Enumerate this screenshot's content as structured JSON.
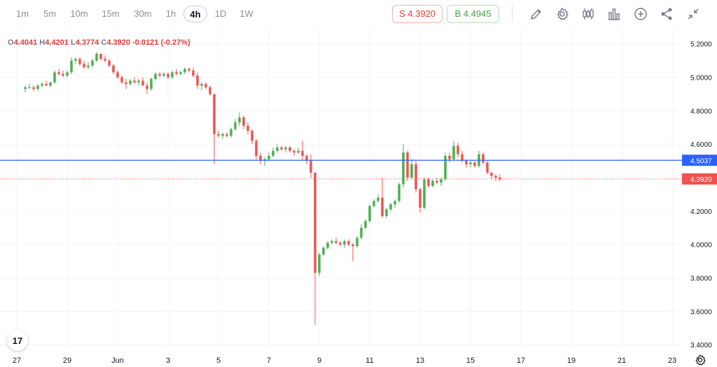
{
  "toolbar": {
    "timeframes": [
      "1m",
      "5m",
      "10m",
      "15m",
      "30m",
      "1h",
      "4h",
      "1D",
      "1W"
    ],
    "active_timeframe": "4h",
    "sell_label": "S 4.3920",
    "buy_label": "B 4.4945",
    "icons": [
      "pencil-icon",
      "gear-icon",
      "candles-icon",
      "bars-icon",
      "plus-circle-icon",
      "share-icon",
      "collapse-icon"
    ]
  },
  "legend": {
    "open_key": "O",
    "open": "4.4041",
    "high_key": "H",
    "high": "4.4201",
    "low_key": "L",
    "low": "4.3774",
    "close_key": "C",
    "close": "4.3920",
    "change": "-0.0121 (-0.27%)"
  },
  "logo_text": "17",
  "colors": {
    "up": "#4caf50",
    "down": "#ef5350",
    "line": "#2962ff",
    "grid": "#f0f3fa",
    "axis_text": "#131722"
  },
  "chart_data": {
    "type": "candlestick",
    "y_ticks": [
      "5.2000",
      "5.0000",
      "4.8000",
      "4.6000",
      "4.4000",
      "4.2000",
      "4.0000",
      "3.8000",
      "3.6000",
      "3.4000"
    ],
    "y_tick_values": [
      5.2,
      5.0,
      4.8,
      4.6,
      4.4,
      4.2,
      4.0,
      3.8,
      3.6,
      3.4
    ],
    "ylim": [
      3.38,
      5.27
    ],
    "x_labels": [
      "27",
      "29",
      "Jun",
      "3",
      "5",
      "7",
      "9",
      "11",
      "13",
      "15",
      "17",
      "19",
      "21",
      "23"
    ],
    "x_label_index": [
      -2,
      10,
      22,
      34,
      46,
      58,
      70,
      82,
      94,
      106,
      118,
      130,
      142,
      154
    ],
    "index_range": [
      -5,
      156
    ],
    "horizontal_line": {
      "value": 4.5037,
      "label": "4.5037"
    },
    "last_price": {
      "value": 4.392,
      "label": "4.3920"
    },
    "candles": [
      [
        4.93,
        4.95,
        4.91,
        4.94
      ],
      [
        4.94,
        4.96,
        4.93,
        4.94
      ],
      [
        4.94,
        4.95,
        4.92,
        4.93
      ],
      [
        4.93,
        4.96,
        4.92,
        4.95
      ],
      [
        4.95,
        4.97,
        4.94,
        4.96
      ],
      [
        4.96,
        4.98,
        4.95,
        4.95
      ],
      [
        4.95,
        4.97,
        4.94,
        4.97
      ],
      [
        4.97,
        5.04,
        4.96,
        5.03
      ],
      [
        5.03,
        5.05,
        5.01,
        5.02
      ],
      [
        5.02,
        5.04,
        5.0,
        5.01
      ],
      [
        5.01,
        5.04,
        5.0,
        5.03
      ],
      [
        5.03,
        5.12,
        5.02,
        5.1
      ],
      [
        5.1,
        5.12,
        5.08,
        5.11
      ],
      [
        5.11,
        5.12,
        5.07,
        5.08
      ],
      [
        5.08,
        5.1,
        5.05,
        5.06
      ],
      [
        5.06,
        5.09,
        5.05,
        5.07
      ],
      [
        5.07,
        5.11,
        5.06,
        5.1
      ],
      [
        5.1,
        5.15,
        5.09,
        5.14
      ],
      [
        5.14,
        5.14,
        5.1,
        5.11
      ],
      [
        5.11,
        5.13,
        5.09,
        5.1
      ],
      [
        5.1,
        5.11,
        5.06,
        5.07
      ],
      [
        5.07,
        5.08,
        5.02,
        5.03
      ],
      [
        5.03,
        5.04,
        4.99,
        5.0
      ],
      [
        5.0,
        5.01,
        4.96,
        4.97
      ],
      [
        4.97,
        4.99,
        4.93,
        4.96
      ],
      [
        4.96,
        4.99,
        4.95,
        4.98
      ],
      [
        4.98,
        5.0,
        4.96,
        4.97
      ],
      [
        4.97,
        4.99,
        4.95,
        4.98
      ],
      [
        4.98,
        5.0,
        4.96,
        4.95
      ],
      [
        4.95,
        4.97,
        4.9,
        4.93
      ],
      [
        4.93,
        5.0,
        4.92,
        4.99
      ],
      [
        4.99,
        5.03,
        4.98,
        5.02
      ],
      [
        5.02,
        5.03,
        5.0,
        5.01
      ],
      [
        5.01,
        5.03,
        5.0,
        5.02
      ],
      [
        5.02,
        5.03,
        4.99,
        5.0
      ],
      [
        5.0,
        5.04,
        4.99,
        5.03
      ],
      [
        5.03,
        5.05,
        5.01,
        5.02
      ],
      [
        5.02,
        5.04,
        5.01,
        5.03
      ],
      [
        5.03,
        5.06,
        5.02,
        5.05
      ],
      [
        5.05,
        5.06,
        5.03,
        5.04
      ],
      [
        5.04,
        5.06,
        5.0,
        5.01
      ],
      [
        5.01,
        5.03,
        4.93,
        4.95
      ],
      [
        4.95,
        4.97,
        4.92,
        4.96
      ],
      [
        4.96,
        4.97,
        4.93,
        4.94
      ],
      [
        4.94,
        4.95,
        4.89,
        4.9
      ],
      [
        4.9,
        4.9,
        4.48,
        4.66
      ],
      [
        4.66,
        4.68,
        4.64,
        4.65
      ],
      [
        4.65,
        4.67,
        4.63,
        4.66
      ],
      [
        4.66,
        4.67,
        4.64,
        4.65
      ],
      [
        4.65,
        4.7,
        4.64,
        4.69
      ],
      [
        4.69,
        4.75,
        4.68,
        4.73
      ],
      [
        4.73,
        4.79,
        4.71,
        4.76
      ],
      [
        4.76,
        4.77,
        4.69,
        4.71
      ],
      [
        4.71,
        4.73,
        4.66,
        4.68
      ],
      [
        4.68,
        4.69,
        4.6,
        4.62
      ],
      [
        4.62,
        4.63,
        4.51,
        4.53
      ],
      [
        4.53,
        4.55,
        4.48,
        4.5
      ],
      [
        4.5,
        4.52,
        4.47,
        4.51
      ],
      [
        4.51,
        4.55,
        4.5,
        4.53
      ],
      [
        4.53,
        4.58,
        4.52,
        4.56
      ],
      [
        4.56,
        4.6,
        4.55,
        4.58
      ],
      [
        4.58,
        4.59,
        4.56,
        4.57
      ],
      [
        4.57,
        4.59,
        4.55,
        4.58
      ],
      [
        4.58,
        4.59,
        4.55,
        4.56
      ],
      [
        4.56,
        4.57,
        4.53,
        4.55
      ],
      [
        4.55,
        4.58,
        4.54,
        4.56
      ],
      [
        4.56,
        4.62,
        4.5,
        4.53
      ],
      [
        4.53,
        4.54,
        4.48,
        4.5
      ],
      [
        4.5,
        4.54,
        4.4,
        4.43
      ],
      [
        4.43,
        4.43,
        3.52,
        3.83
      ],
      [
        3.83,
        3.95,
        3.81,
        3.94
      ],
      [
        3.94,
        3.99,
        3.93,
        3.98
      ],
      [
        3.98,
        4.02,
        3.97,
        4.01
      ],
      [
        4.01,
        4.03,
        4.0,
        4.02
      ],
      [
        4.02,
        4.04,
        4.0,
        4.01
      ],
      [
        4.01,
        4.02,
        3.99,
        4.0
      ],
      [
        4.0,
        4.03,
        3.98,
        4.02
      ],
      [
        4.02,
        4.03,
        3.99,
        4.0
      ],
      [
        4.0,
        4.01,
        3.9,
        3.99
      ],
      [
        3.99,
        4.05,
        3.98,
        4.04
      ],
      [
        4.04,
        4.12,
        4.03,
        4.1
      ],
      [
        4.1,
        4.15,
        4.09,
        4.14
      ],
      [
        4.14,
        4.24,
        4.13,
        4.23
      ],
      [
        4.23,
        4.27,
        4.22,
        4.26
      ],
      [
        4.26,
        4.3,
        4.25,
        4.28
      ],
      [
        4.28,
        4.4,
        4.16,
        4.17
      ],
      [
        4.17,
        4.22,
        4.16,
        4.21
      ],
      [
        4.21,
        4.25,
        4.2,
        4.24
      ],
      [
        4.24,
        4.27,
        4.22,
        4.26
      ],
      [
        4.26,
        4.37,
        4.25,
        4.36
      ],
      [
        4.36,
        4.6,
        4.34,
        4.55
      ],
      [
        4.55,
        4.56,
        4.38,
        4.4
      ],
      [
        4.4,
        4.51,
        4.39,
        4.48
      ],
      [
        4.48,
        4.5,
        4.31,
        4.33
      ],
      [
        4.33,
        4.34,
        4.19,
        4.22
      ],
      [
        4.22,
        4.4,
        4.21,
        4.39
      ],
      [
        4.39,
        4.4,
        4.34,
        4.35
      ],
      [
        4.35,
        4.39,
        4.34,
        4.38
      ],
      [
        4.38,
        4.4,
        4.36,
        4.37
      ],
      [
        4.37,
        4.4,
        4.35,
        4.39
      ],
      [
        4.39,
        4.55,
        4.38,
        4.53
      ],
      [
        4.53,
        4.55,
        4.49,
        4.51
      ],
      [
        4.51,
        4.62,
        4.5,
        4.59
      ],
      [
        4.59,
        4.61,
        4.52,
        4.54
      ],
      [
        4.54,
        4.56,
        4.49,
        4.5
      ],
      [
        4.5,
        4.51,
        4.46,
        4.48
      ],
      [
        4.48,
        4.5,
        4.46,
        4.49
      ],
      [
        4.49,
        4.5,
        4.46,
        4.47
      ],
      [
        4.47,
        4.56,
        4.46,
        4.54
      ],
      [
        4.54,
        4.55,
        4.48,
        4.49
      ],
      [
        4.49,
        4.5,
        4.42,
        4.43
      ],
      [
        4.43,
        4.43,
        4.39,
        4.41
      ],
      [
        4.41,
        4.42,
        4.38,
        4.4
      ],
      [
        4.4,
        4.42,
        4.38,
        4.39
      ]
    ]
  }
}
